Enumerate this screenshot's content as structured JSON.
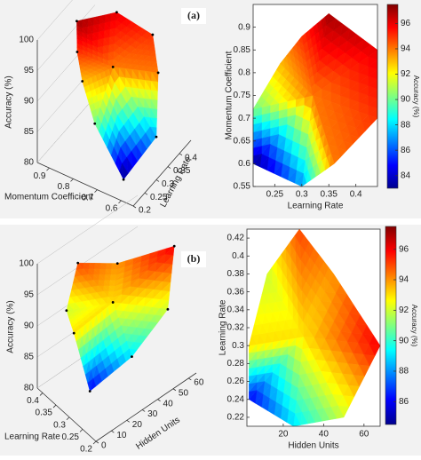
{
  "chart_data": [
    {
      "type": "surface",
      "panel_label": "(a)",
      "x_label": "Learning Rate",
      "y_label": "Momentum Coefficient",
      "z_label": "Accuracy (%)",
      "colorbar_label": "Accuracy (%)",
      "x": [
        0.32,
        0.35,
        0.44,
        0.44,
        0.36,
        0.3,
        0.21,
        0.21,
        0.26,
        0.3
      ],
      "y": [
        0.75,
        0.93,
        0.85,
        0.7,
        0.6,
        0.55,
        0.6,
        0.72,
        0.82,
        0.88
      ],
      "z": [
        94,
        97,
        96,
        95,
        94,
        87,
        83,
        90,
        93,
        95
      ],
      "xlim": [
        0.21,
        0.44
      ],
      "xticks": [
        0.25,
        0.3,
        0.35,
        0.4
      ],
      "ylim": [
        0.55,
        0.95
      ],
      "yticks": [
        0.55,
        0.6,
        0.65,
        0.7,
        0.75,
        0.8,
        0.85,
        0.9
      ],
      "xlim_3d": [
        0.2,
        0.45
      ],
      "xticks_3d": [
        0.2,
        0.25,
        0.3,
        0.35,
        0.4
      ],
      "ylim_3d": [
        0.55,
        0.95
      ],
      "yticks_3d": [
        0.6,
        0.7,
        0.8,
        0.9
      ],
      "zlim": [
        80,
        100
      ],
      "zticks": [
        80,
        85,
        90,
        95,
        100
      ],
      "clim": [
        83,
        97.5
      ],
      "cticks": [
        84,
        86,
        88,
        90,
        92,
        94,
        96
      ]
    },
    {
      "type": "surface",
      "panel_label": "(b)",
      "x_label": "Hidden Units",
      "y_label": "Learning Rate",
      "z_label": "Accuracy (%)",
      "colorbar_label": "Accuracy (%)",
      "x": [
        30,
        28,
        45,
        68,
        50,
        25,
        3,
        3,
        12
      ],
      "y": [
        0.31,
        0.43,
        0.38,
        0.3,
        0.22,
        0.21,
        0.24,
        0.3,
        0.38
      ],
      "z": [
        93,
        95,
        94,
        96,
        92,
        89,
        86,
        93,
        92
      ],
      "xlim": [
        2,
        68
      ],
      "xticks": [
        20,
        40,
        60
      ],
      "ylim": [
        0.21,
        0.43
      ],
      "yticks": [
        0.22,
        0.24,
        0.26,
        0.28,
        0.3,
        0.32,
        0.34,
        0.36,
        0.38,
        0.4,
        0.42
      ],
      "xlim_3d": [
        0,
        65
      ],
      "xticks_3d": [
        0,
        10,
        20,
        30,
        40,
        50,
        60
      ],
      "ylim_3d": [
        0.2,
        0.42
      ],
      "yticks_3d": [
        0.2,
        0.25,
        0.3,
        0.35,
        0.4
      ],
      "zlim": [
        80,
        100
      ],
      "zticks": [
        80,
        85,
        90,
        95,
        100
      ],
      "clim": [
        84.5,
        97.5
      ],
      "cticks": [
        86,
        88,
        90,
        92,
        94,
        96
      ]
    }
  ]
}
